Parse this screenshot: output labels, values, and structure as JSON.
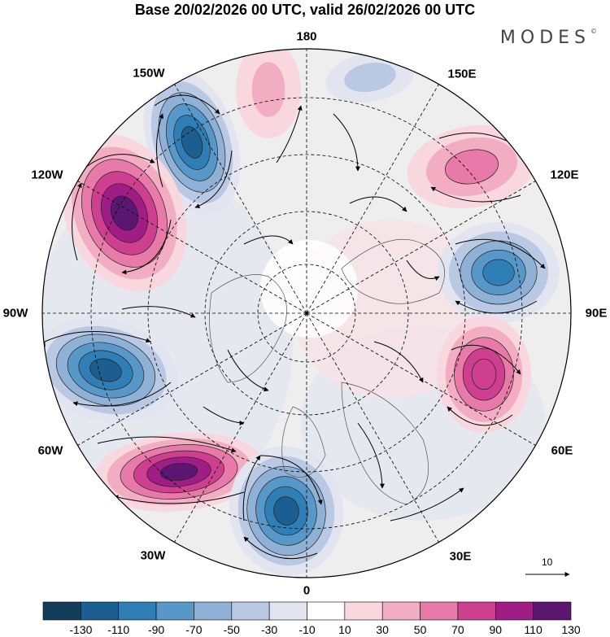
{
  "title": "Base 20/02/2026 00 UTC, valid 26/02/2026 00 UTC",
  "brand": "MODES",
  "brand_mark": "©",
  "lon_labels": {
    "l180": "180",
    "l150e": "150E",
    "l120e": "120E",
    "l90e": "90E",
    "l60e": "60E",
    "l30e": "30E",
    "l0": "0",
    "l30w": "30W",
    "l60w": "60W",
    "l90w": "90W",
    "l120w": "120W",
    "l150w": "150W"
  },
  "reference_vector": "10",
  "colorbar": {
    "colors": [
      "#143d5c",
      "#1b5e8f",
      "#2f7fb6",
      "#5898c8",
      "#8fb1d6",
      "#b9c9e3",
      "#e2e5f0",
      "#ffffff",
      "#f8d8de",
      "#f3adc2",
      "#e77aa8",
      "#cf3f8f",
      "#a01d85",
      "#5a1670"
    ],
    "ticks": [
      "-130",
      "-110",
      "-90",
      "-70",
      "-50",
      "-30",
      "-10",
      "10",
      "30",
      "50",
      "70",
      "90",
      "110",
      "130"
    ]
  },
  "anomalies": [
    {
      "name": "neg-150w",
      "value": -120
    },
    {
      "name": "pos-120w",
      "value": 120
    },
    {
      "name": "neg-75w",
      "value": -110
    },
    {
      "name": "pos-45w",
      "value": 125
    },
    {
      "name": "neg-15w",
      "value": -110
    },
    {
      "name": "pos-120e",
      "value": 60
    },
    {
      "name": "neg-100e",
      "value": -100
    },
    {
      "name": "pos-75e",
      "value": 90
    },
    {
      "name": "pos-175w",
      "value": 40
    },
    {
      "name": "neg-165e",
      "value": -40
    }
  ]
}
